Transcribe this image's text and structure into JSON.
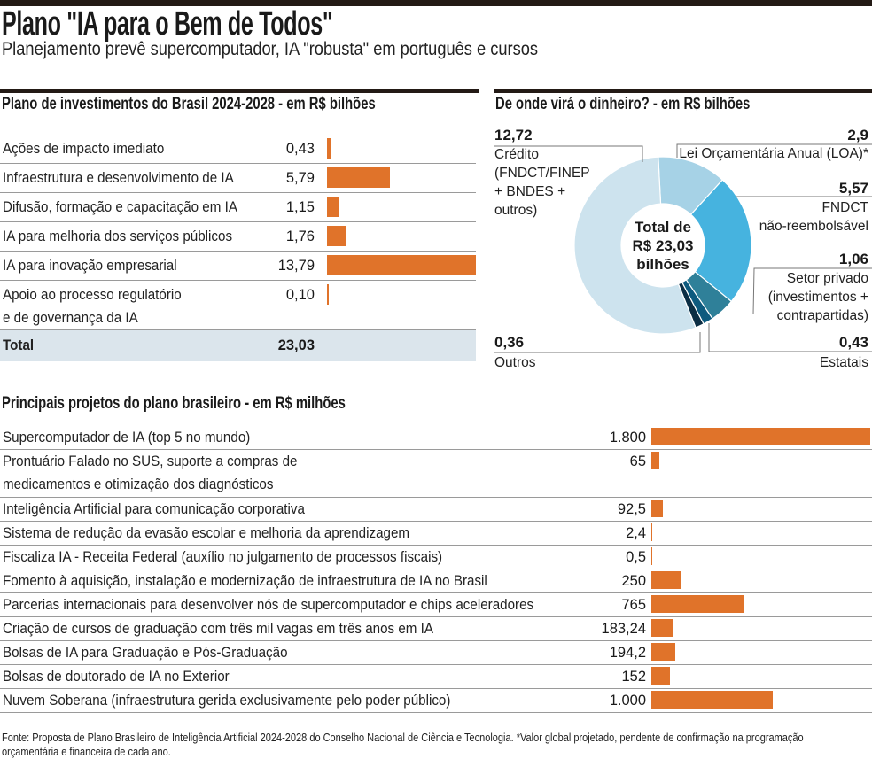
{
  "header": {
    "title": "Plano \"IA para o Bem de Todos\"",
    "subtitle": "Planejamento prevê supercomputador, IA \"robusta\" em português e cursos"
  },
  "colors": {
    "bar": "#e0732a",
    "total_bg": "#dbe5ec",
    "rule": "#231a15"
  },
  "chart_data": [
    {
      "type": "bar",
      "orientation": "horizontal",
      "title": "Plano de investimentos do Brasil 2024-2028 - em R$ bilhões",
      "categories": [
        "Ações de impacto imediato",
        "Infraestrutura e desenvolvimento de IA",
        "Difusão, formação e capacitação em IA",
        "IA para melhoria dos serviços públicos",
        "IA para inovação empresarial",
        "Apoio ao processo regulatório\ne de governança da IA"
      ],
      "labels": [
        "0,43",
        "5,79",
        "1,15",
        "1,76",
        "13,79",
        "0,10"
      ],
      "values": [
        0.43,
        5.79,
        1.15,
        1.76,
        13.79,
        0.1
      ],
      "total_label": "Total",
      "total_value": "23,03"
    },
    {
      "type": "pie",
      "style": "donut",
      "title": "De onde virá o dinheiro? - em R$ bilhões",
      "center_text": [
        "Total de",
        "R$ 23,03",
        "bilhões"
      ],
      "slices": [
        {
          "name": "Lei Orçamentária Anual (LOA)*",
          "label": "2,9",
          "value": 2.9,
          "color": "#a6d2e6"
        },
        {
          "name": "FNDCT\nnão-reembolsável",
          "label": "5,57",
          "value": 5.57,
          "color": "#46b3df"
        },
        {
          "name": "Setor privado\n(investimentos +\ncontrapartidas)",
          "label": "1,06",
          "value": 1.06,
          "color": "#2f8099"
        },
        {
          "name": "Estatais",
          "label": "0,43",
          "value": 0.43,
          "color": "#0d5a7e"
        },
        {
          "name": "Outros",
          "label": "0,36",
          "value": 0.36,
          "color": "#0b2e44"
        },
        {
          "name": "Crédito\n(FNDCT/FINEP\n+ BNDES +\noutros)",
          "label": "12,72",
          "value": 12.72,
          "color": "#cde3ee"
        }
      ]
    },
    {
      "type": "bar",
      "orientation": "horizontal",
      "title": "Principais projetos do plano brasileiro - em R$ milhões",
      "categories": [
        "Supercomputador de IA (top 5 no mundo)",
        "Prontuário Falado no SUS, suporte a compras de\nmedicamentos e otimização dos diagnósticos",
        "Inteligência Artificial para comunicação corporativa",
        "Sistema de redução da evasão escolar e melhoria da aprendizagem",
        "Fiscaliza IA - Receita Federal (auxílio no julgamento de processos fiscais)",
        "Fomento à aquisição, instalação e modernização de infraestrutura de IA no Brasil",
        "Parcerias internacionais para desenvolver nós de supercomputador e chips aceleradores",
        "Criação de cursos de graduação com três mil vagas em três anos em IA",
        "Bolsas de IA para Graduação e Pós-Graduação",
        "Bolsas de doutorado de IA no Exterior",
        "Nuvem Soberana (infraestrutura gerida exclusivamente pelo poder público)"
      ],
      "labels": [
        "1.800",
        "65",
        "92,5",
        "2,4",
        "0,5",
        "250",
        "765",
        "183,24",
        "194,2",
        "152",
        "1.000"
      ],
      "values": [
        1800,
        65,
        92.5,
        2.4,
        0.5,
        250,
        765,
        183.24,
        194.2,
        152,
        1000
      ]
    }
  ],
  "footer": "Fonte: Proposta de Plano Brasileiro de Inteligência Artificial 2024-2028 do Conselho Nacional de Ciência e Tecnologia. *Valor global projetado, pendente de confirmação na programação orçamentária e financeira de cada ano."
}
